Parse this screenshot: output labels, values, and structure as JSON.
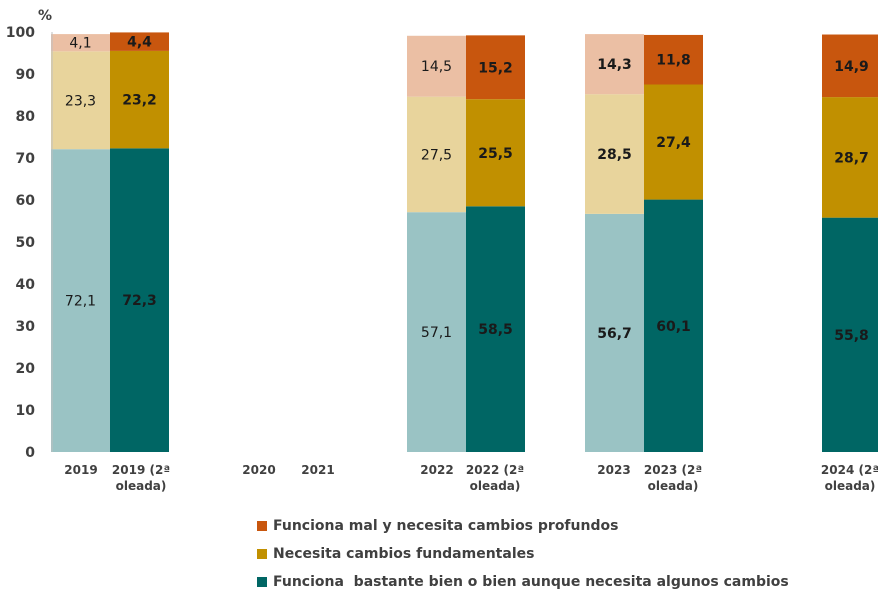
{
  "chart_data": {
    "type": "bar",
    "stacked": true,
    "ylabel": "%",
    "ylim": [
      0,
      100
    ],
    "yticks": [
      0,
      10,
      20,
      30,
      40,
      50,
      60,
      70,
      80,
      90,
      100
    ],
    "grid": false,
    "legend_position": "bottom",
    "categories": [
      "2019",
      "2019 (2ª oleada)",
      "2020",
      "2021",
      "2022",
      "2022 (2ª oleada)",
      "2023",
      "2023 (2ª oleada)",
      "2024 (2ª oleada)"
    ],
    "category_lines": [
      [
        "2019"
      ],
      [
        "2019 (2ª",
        "oleada)"
      ],
      [
        "2020"
      ],
      [
        "2021"
      ],
      [
        "2022"
      ],
      [
        "2022 (2ª",
        "oleada)"
      ],
      [
        "2023"
      ],
      [
        "2023 (2ª",
        "oleada)"
      ],
      [
        "2024 (2ª",
        "oleada)"
      ]
    ],
    "series": [
      {
        "name": "Funciona  bastante bien o bien aunque necesita algunos cambios",
        "key": "bien",
        "values": [
          72.1,
          72.3,
          null,
          null,
          57.1,
          58.5,
          56.7,
          60.1,
          55.8
        ],
        "labels": [
          "72,1",
          "72,3",
          "",
          "",
          "57,1",
          "58,5",
          "56,7",
          "60,1",
          "55,8"
        ]
      },
      {
        "name": "Necesita cambios fundamentales",
        "key": "fundamentales",
        "values": [
          23.3,
          23.2,
          null,
          null,
          27.5,
          25.5,
          28.5,
          27.4,
          28.7
        ],
        "labels": [
          "23,3",
          "23,2",
          "",
          "",
          "27,5",
          "25,5",
          "28,5",
          "27,4",
          "28,7"
        ]
      },
      {
        "name": "Funciona mal y necesita cambios profundos",
        "key": "mal",
        "values": [
          4.1,
          4.4,
          null,
          null,
          14.5,
          15.2,
          14.3,
          11.8,
          14.9
        ],
        "labels": [
          "4,1",
          "4,4",
          "",
          "",
          "14,5",
          "15,2",
          "14,3",
          "11,8",
          "14,9"
        ]
      }
    ],
    "colors": {
      "first_wave": [
        "#9ac3c4",
        "#e8d49c",
        "#ebbfa4"
      ],
      "second_wave": [
        "#006664",
        "#c19000",
        "#c8560e"
      ]
    },
    "bold_labels": [
      false,
      true,
      false,
      false,
      false,
      true,
      true,
      true,
      true
    ],
    "legend_order": [
      "mal",
      "fundamentales",
      "bien"
    ]
  }
}
